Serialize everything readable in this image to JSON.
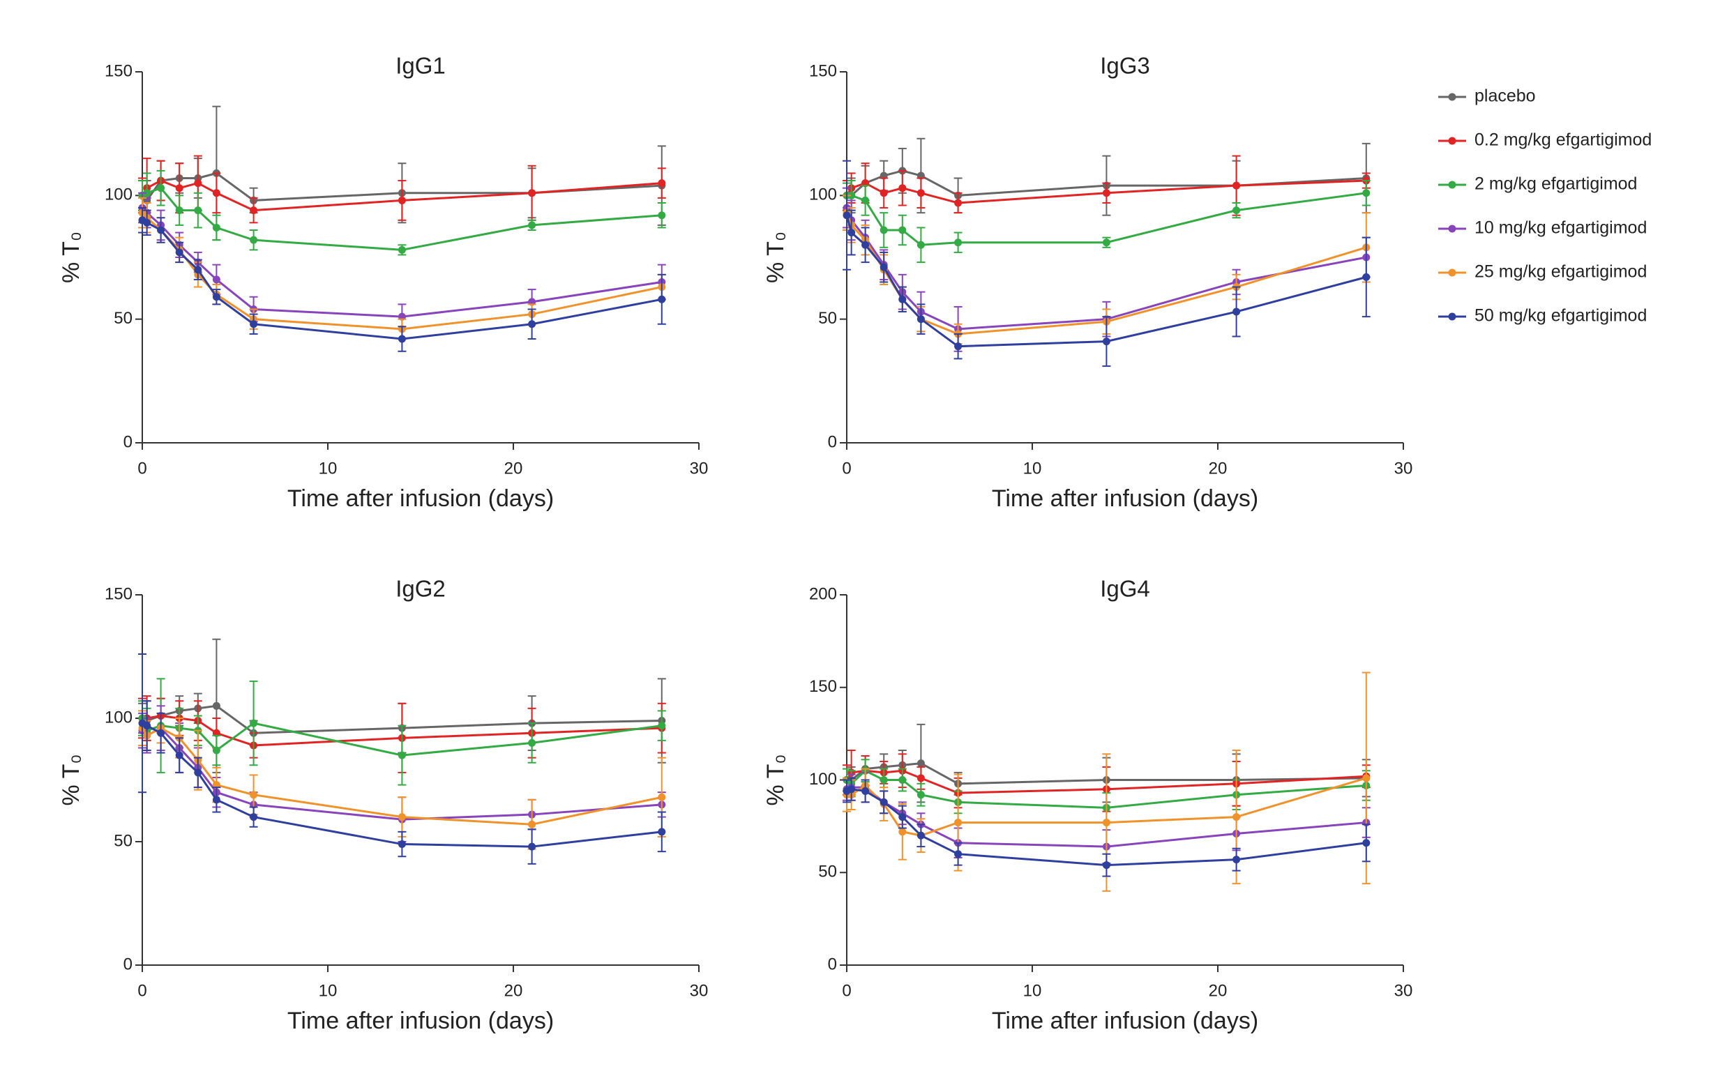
{
  "chart_data": [
    {
      "type": "line",
      "title": "IgG1",
      "x_label": "Time after infusion (days)",
      "y_label": "% T₀",
      "x": [
        0,
        0.25,
        1,
        2,
        3,
        4,
        6,
        14,
        21,
        28
      ],
      "xlim": [
        0,
        30
      ],
      "xticks": [
        0,
        10,
        20,
        30
      ],
      "ylim": [
        0,
        150
      ],
      "yticks": [
        0,
        50,
        100,
        150
      ],
      "series": [
        {
          "color": "#666666",
          "values": [
            100,
            98,
            106,
            107,
            107,
            109,
            98,
            101,
            101,
            104
          ],
          "errors": [
            6,
            8,
            8,
            6,
            8,
            27,
            5,
            12,
            10,
            16
          ]
        },
        {
          "color": "#e02424",
          "values": [
            100,
            103,
            106,
            103,
            105,
            101,
            94,
            98,
            101,
            105
          ],
          "errors": [
            7,
            12,
            8,
            10,
            11,
            8,
            5,
            8,
            11,
            6
          ]
        },
        {
          "color": "#33aa44",
          "values": [
            100,
            101,
            103,
            94,
            94,
            87,
            82,
            78,
            88,
            92
          ],
          "errors": [
            6,
            8,
            7,
            6,
            7,
            5,
            4,
            2,
            2,
            5
          ]
        },
        {
          "color": "#8844bb",
          "values": [
            95,
            93,
            88,
            80,
            73,
            66,
            54,
            51,
            57,
            65
          ],
          "errors": [
            6,
            6,
            6,
            5,
            4,
            6,
            5,
            5,
            5,
            7
          ]
        },
        {
          "color": "#f0922b",
          "values": [
            93,
            91,
            86,
            78,
            68,
            60,
            50,
            46,
            52,
            63
          ],
          "errors": [
            6,
            6,
            5,
            5,
            5,
            4,
            4,
            4,
            4,
            5
          ]
        },
        {
          "color": "#2f3f9e",
          "values": [
            90,
            89,
            86,
            77,
            70,
            59,
            48,
            42,
            48,
            58
          ],
          "errors": [
            5,
            5,
            5,
            4,
            4,
            3,
            4,
            5,
            6,
            10
          ]
        }
      ]
    },
    {
      "type": "line",
      "title": "IgG3",
      "x_label": "Time after infusion (days)",
      "y_label": "% T₀",
      "x": [
        0,
        0.25,
        1,
        2,
        3,
        4,
        6,
        14,
        21,
        28
      ],
      "xlim": [
        0,
        30
      ],
      "xticks": [
        0,
        10,
        20,
        30
      ],
      "ylim": [
        0,
        150
      ],
      "yticks": [
        0,
        50,
        100,
        150
      ],
      "legend": "outside right",
      "series": [
        {
          "name": "placebo",
          "color": "#666666",
          "values": [
            100,
            100,
            105,
            108,
            110,
            108,
            100,
            104,
            104,
            107
          ],
          "errors": [
            6,
            7,
            7,
            6,
            9,
            15,
            7,
            12,
            10,
            14
          ]
        },
        {
          "name": "0.2 mg/kg efgartigimod",
          "color": "#e02424",
          "values": [
            100,
            103,
            105,
            101,
            103,
            101,
            97,
            101,
            104,
            106
          ],
          "errors": [
            6,
            6,
            8,
            6,
            7,
            6,
            4,
            4,
            12,
            3
          ]
        },
        {
          "name": "2 mg/kg efgartigimod",
          "color": "#33aa44",
          "values": [
            100,
            100,
            98,
            86,
            86,
            80,
            81,
            81,
            94,
            101
          ],
          "errors": [
            5,
            6,
            6,
            7,
            6,
            7,
            4,
            2,
            3,
            5
          ]
        },
        {
          "name": "10 mg/kg efgartigimod",
          "color": "#8844bb",
          "values": [
            95,
            90,
            83,
            72,
            61,
            53,
            46,
            50,
            65,
            75
          ],
          "errors": [
            8,
            8,
            7,
            6,
            7,
            8,
            9,
            7,
            5,
            8
          ]
        },
        {
          "name": "25 mg/kg efgartigimod",
          "color": "#f0922b",
          "values": [
            93,
            88,
            82,
            70,
            58,
            50,
            44,
            49,
            63,
            79
          ],
          "errors": [
            7,
            7,
            6,
            6,
            5,
            5,
            4,
            5,
            5,
            14
          ]
        },
        {
          "name": "50 mg/kg efgartigimod",
          "color": "#2f3f9e",
          "values": [
            92,
            85,
            80,
            71,
            58,
            50,
            39,
            41,
            53,
            67
          ],
          "errors": [
            22,
            9,
            7,
            6,
            5,
            6,
            5,
            10,
            10,
            16
          ]
        }
      ]
    },
    {
      "type": "line",
      "title": "IgG2",
      "x_label": "Time after infusion (days)",
      "y_label": "% T₀",
      "x": [
        0,
        0.25,
        1,
        2,
        3,
        4,
        6,
        14,
        21,
        28
      ],
      "xlim": [
        0,
        30
      ],
      "xticks": [
        0,
        10,
        20,
        30
      ],
      "ylim": [
        0,
        150
      ],
      "yticks": [
        0,
        50,
        100,
        150
      ],
      "series": [
        {
          "color": "#666666",
          "values": [
            100,
            99,
            101,
            103,
            104,
            105,
            94,
            96,
            98,
            99
          ],
          "errors": [
            6,
            8,
            7,
            6,
            6,
            27,
            5,
            10,
            11,
            17
          ]
        },
        {
          "color": "#e02424",
          "values": [
            100,
            100,
            101,
            100,
            99,
            94,
            89,
            92,
            94,
            96
          ],
          "errors": [
            8,
            9,
            7,
            7,
            8,
            6,
            5,
            14,
            10,
            10
          ]
        },
        {
          "color": "#33aa44",
          "values": [
            100,
            95,
            97,
            96,
            95,
            87,
            98,
            85,
            90,
            97
          ],
          "errors": [
            7,
            9,
            19,
            8,
            6,
            6,
            17,
            12,
            8,
            6
          ]
        },
        {
          "color": "#8844bb",
          "values": [
            95,
            93,
            96,
            88,
            80,
            70,
            65,
            59,
            61,
            65
          ],
          "errors": [
            7,
            7,
            9,
            10,
            8,
            6,
            5,
            9,
            6,
            5
          ]
        },
        {
          "color": "#f0922b",
          "values": [
            96,
            93,
            96,
            92,
            83,
            73,
            69,
            60,
            57,
            68
          ],
          "errors": [
            7,
            6,
            6,
            8,
            12,
            7,
            8,
            8,
            10,
            16
          ]
        },
        {
          "color": "#2f3f9e",
          "values": [
            98,
            97,
            94,
            85,
            78,
            67,
            60,
            49,
            48,
            54
          ],
          "errors": [
            28,
            10,
            8,
            7,
            6,
            5,
            4,
            5,
            7,
            8
          ]
        }
      ]
    },
    {
      "type": "line",
      "title": "IgG4",
      "x_label": "Time after infusion (days)",
      "y_label": "% T₀",
      "x": [
        0,
        0.25,
        1,
        2,
        3,
        4,
        6,
        14,
        21,
        28
      ],
      "xlim": [
        0,
        30
      ],
      "xticks": [
        0,
        10,
        20,
        30
      ],
      "ylim": [
        0,
        200
      ],
      "yticks": [
        0,
        50,
        100,
        150,
        200
      ],
      "series": [
        {
          "color": "#666666",
          "values": [
            100,
            100,
            106,
            107,
            108,
            109,
            98,
            100,
            100,
            101
          ],
          "errors": [
            6,
            7,
            7,
            7,
            8,
            21,
            6,
            12,
            14,
            10
          ]
        },
        {
          "color": "#e02424",
          "values": [
            100,
            104,
            105,
            104,
            105,
            101,
            93,
            95,
            98,
            102
          ],
          "errors": [
            8,
            12,
            8,
            6,
            9,
            6,
            8,
            12,
            12,
            6
          ]
        },
        {
          "color": "#33aa44",
          "values": [
            100,
            98,
            105,
            100,
            100,
            92,
            88,
            85,
            92,
            97
          ],
          "errors": [
            6,
            7,
            6,
            6,
            6,
            6,
            6,
            8,
            8,
            8
          ]
        },
        {
          "color": "#8844bb",
          "values": [
            95,
            96,
            96,
            88,
            82,
            76,
            66,
            64,
            71,
            77
          ],
          "errors": [
            6,
            7,
            8,
            6,
            6,
            6,
            8,
            9,
            9,
            8
          ]
        },
        {
          "color": "#f0922b",
          "values": [
            92,
            92,
            97,
            87,
            72,
            70,
            77,
            77,
            80,
            101
          ],
          "errors": [
            9,
            8,
            9,
            9,
            15,
            9,
            26,
            37,
            36,
            57
          ]
        },
        {
          "color": "#2f3f9e",
          "values": [
            94,
            95,
            94,
            88,
            80,
            70,
            60,
            54,
            57,
            66
          ],
          "errors": [
            6,
            6,
            6,
            6,
            6,
            6,
            6,
            6,
            6,
            10
          ]
        }
      ]
    }
  ]
}
